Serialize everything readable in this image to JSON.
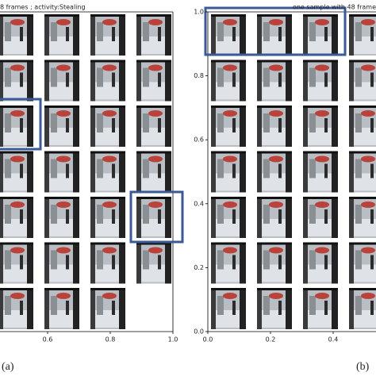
{
  "panels": [
    {
      "title": "8 frames ; activity:Stealing",
      "label": "(a)",
      "xlim": [
        0,
        1
      ],
      "xticks": [
        {
          "value": 0.6,
          "label": "0.6"
        },
        {
          "value": 0.8,
          "label": "0.8"
        },
        {
          "value": 1,
          "label": "1.0"
        }
      ]
    },
    {
      "title": "one sample with 48 frame",
      "label": "(b)",
      "xlim": [
        0,
        1
      ],
      "ylim": [
        0,
        1
      ],
      "xticks": [
        {
          "value": 0,
          "label": "0.0"
        },
        {
          "value": 0.2,
          "label": "0.2"
        },
        {
          "value": 0.4,
          "label": "0.4"
        }
      ],
      "yticks": [
        {
          "value": 0,
          "label": "0.0"
        },
        {
          "value": 0.2,
          "label": "0.2"
        },
        {
          "value": 0.4,
          "label": "0.4"
        },
        {
          "value": 0.6,
          "label": "0.6"
        },
        {
          "value": 0.8,
          "label": "0.8"
        },
        {
          "value": 1,
          "label": "1.0"
        }
      ]
    }
  ]
}
